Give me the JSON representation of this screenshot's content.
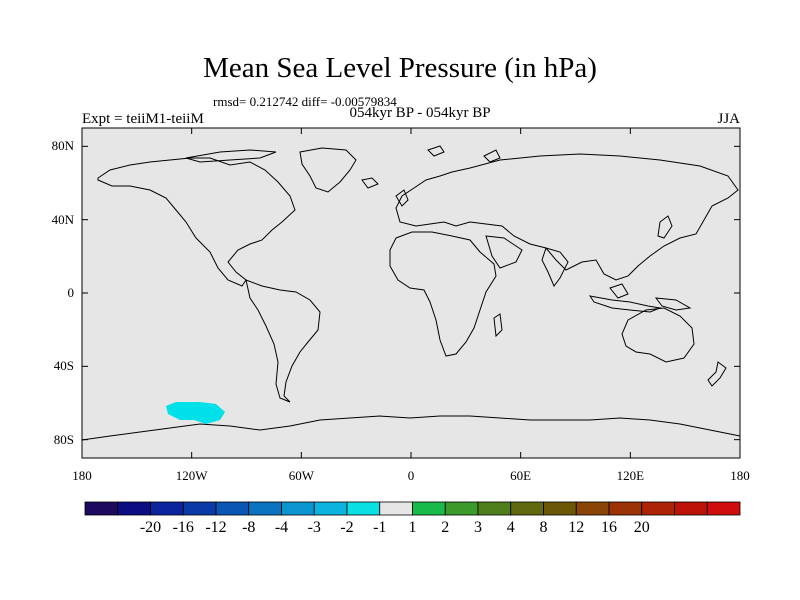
{
  "title": "Mean Sea Level Pressure (in hPa)",
  "stats": "rmsd= 0.212742 diff= -0.00579834",
  "left_label": "Expt = teiiM1-teiiM",
  "center_label": "054kyr BP - 054kyr BP",
  "season_label": "JJA",
  "lat_ticks": [
    "80N",
    "40N",
    "0",
    "40S",
    "80S"
  ],
  "lon_ticks": [
    "180",
    "120W",
    "60W",
    "0",
    "60E",
    "120E",
    "180"
  ],
  "map": {
    "background_color": "#e6e6e6",
    "lat_range": [
      -90,
      90
    ],
    "lon_range": [
      -180,
      180
    ],
    "anomaly_region": {
      "fill_level": "-2 to -1",
      "color": "#00e0e8"
    }
  },
  "colorbar": {
    "colors": [
      "#1d0a5e",
      "#0c0d82",
      "#0b239c",
      "#0a3aa8",
      "#0b55b5",
      "#0a74c0",
      "#0a95cf",
      "#0bb4de",
      "#0ae0e4",
      "#e6e6e6",
      "#18bb4a",
      "#3c9a2a",
      "#4f7f1d",
      "#5f6a0e",
      "#6b5806",
      "#8a4406",
      "#9b3306",
      "#ad2306",
      "#bd1208",
      "#d00d0d"
    ],
    "labels": [
      "-20",
      "-16",
      "-12",
      "-8",
      "-4",
      "-3",
      "-2",
      "-1",
      "1",
      "2",
      "3",
      "4",
      "8",
      "12",
      "16",
      "20"
    ]
  }
}
